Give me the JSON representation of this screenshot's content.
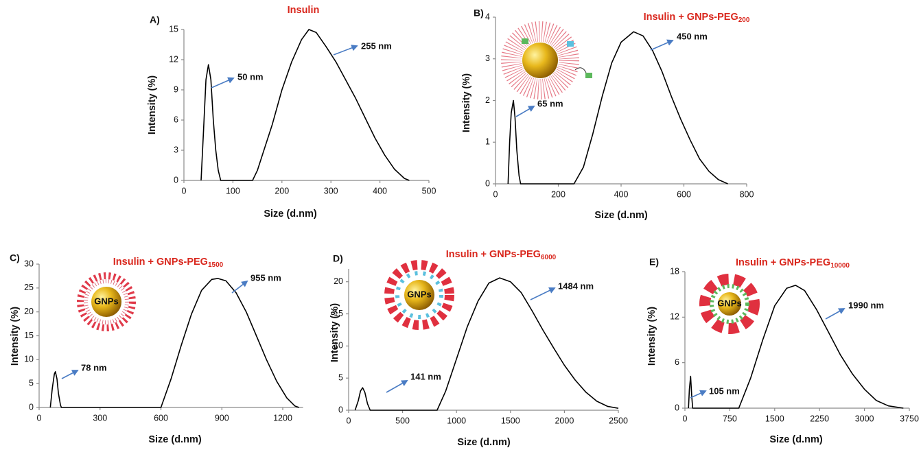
{
  "chart_data": [
    {
      "type": "line",
      "panel_label": "A)",
      "title": "Insulin",
      "x_label": "Size (d.nm)",
      "y_label": "Intensity (%)",
      "xlim": [
        0,
        500
      ],
      "xticks": [
        0,
        100,
        200,
        300,
        400,
        500
      ],
      "ylim": [
        0,
        15
      ],
      "yticks": [
        0,
        3,
        6,
        9,
        12,
        15
      ],
      "x": [
        35,
        40,
        45,
        50,
        55,
        60,
        65,
        70,
        75,
        140,
        150,
        160,
        180,
        200,
        220,
        240,
        255,
        270,
        290,
        310,
        330,
        350,
        370,
        390,
        410,
        430,
        450,
        460
      ],
      "series": [
        {
          "color": "#000000",
          "values": [
            0,
            5,
            10,
            11.5,
            10,
            6,
            3,
            1,
            0,
            0,
            1,
            2.5,
            5.5,
            9,
            11.8,
            14,
            15,
            14.7,
            13.3,
            11.8,
            10,
            8.2,
            6.2,
            4.2,
            2.5,
            1.1,
            0.2,
            0
          ]
        }
      ],
      "annotations": [
        "50 nm",
        "255 nm"
      ]
    },
    {
      "type": "line",
      "panel_label": "B)",
      "title": "Insulin + GNPs-PEG",
      "title_subscript": "200",
      "x_label": "Size (d.nm)",
      "y_label": "Intensity (%)",
      "xlim": [
        0,
        800
      ],
      "xticks": [
        0,
        200,
        400,
        600,
        800
      ],
      "ylim": [
        0,
        4
      ],
      "yticks": [
        0,
        1,
        2,
        3,
        4
      ],
      "x": [
        40,
        45,
        50,
        57,
        62,
        68,
        75,
        80,
        250,
        280,
        310,
        340,
        370,
        400,
        440,
        470,
        500,
        530,
        560,
        590,
        620,
        650,
        680,
        710,
        740
      ],
      "series": [
        {
          "color": "#000000",
          "values": [
            0,
            1,
            1.7,
            2,
            1.6,
            0.8,
            0.2,
            0,
            0,
            0.4,
            1.2,
            2.1,
            2.9,
            3.4,
            3.65,
            3.55,
            3.2,
            2.7,
            2.1,
            1.55,
            1.05,
            0.6,
            0.3,
            0.1,
            0
          ]
        }
      ],
      "annotations": [
        "65 nm",
        "450 nm"
      ]
    },
    {
      "type": "line",
      "panel_label": "C)",
      "title": "Insulin + GNPs-PEG",
      "title_subscript": "1500",
      "x_label": "Size (d.nm)",
      "y_label": "Intensity (%)",
      "illustration_label": "GNPs",
      "xlim": [
        0,
        1300
      ],
      "xticks": [
        0,
        300,
        600,
        900,
        1200
      ],
      "ylim": [
        0,
        30
      ],
      "yticks": [
        0,
        5,
        10,
        15,
        20,
        25,
        30
      ],
      "x": [
        55,
        65,
        75,
        80,
        88,
        95,
        105,
        110,
        600,
        650,
        700,
        750,
        800,
        850,
        880,
        920,
        970,
        1020,
        1070,
        1120,
        1170,
        1220,
        1260,
        1280
      ],
      "series": [
        {
          "color": "#000000",
          "values": [
            0,
            4,
            7,
            7.5,
            6,
            3,
            0.5,
            0,
            0,
            6,
            13,
            19.5,
            24.5,
            26.8,
            27,
            26.5,
            24,
            20,
            15,
            10,
            5.5,
            2,
            0.3,
            0
          ]
        }
      ],
      "annotations": [
        "78 nm",
        "955 nm"
      ]
    },
    {
      "type": "line",
      "panel_label": "D)",
      "title": "Insulin + GNPs-PEG",
      "title_subscript": "6000",
      "x_label": "Size (d.nm)",
      "y_label": "Intensity (%)",
      "illustration_label": "GNPs",
      "xlim": [
        0,
        2500
      ],
      "xticks": [
        0,
        500,
        1000,
        1500,
        2000,
        2500
      ],
      "ylim": [
        0,
        22
      ],
      "yticks": [
        0,
        5,
        10,
        15,
        20
      ],
      "x": [
        60,
        90,
        110,
        130,
        150,
        175,
        200,
        820,
        900,
        1000,
        1100,
        1200,
        1300,
        1400,
        1500,
        1600,
        1700,
        1800,
        1900,
        2000,
        2100,
        2200,
        2300,
        2400,
        2500
      ],
      "series": [
        {
          "color": "#000000",
          "values": [
            0,
            1.5,
            3,
            3.5,
            2.8,
            1,
            0,
            0,
            3,
            8,
            13,
            17,
            19.8,
            20.6,
            20,
            18.3,
            15.5,
            12.5,
            9.7,
            7,
            4.7,
            2.8,
            1.4,
            0.6,
            0.3
          ]
        }
      ],
      "annotations": [
        "141 nm",
        "1484 nm"
      ]
    },
    {
      "type": "line",
      "panel_label": "E)",
      "title": "Insulin + GNPs-PEG",
      "title_subscript": "10000",
      "x_label": "Size (d.nm)",
      "y_label": "Intensity (%)",
      "illustration_label": "GNPs",
      "xlim": [
        0,
        3750
      ],
      "xticks": [
        0,
        750,
        1500,
        2250,
        3000,
        3750
      ],
      "ylim": [
        0,
        18
      ],
      "yticks": [
        0,
        6,
        12,
        18
      ],
      "x": [
        60,
        75,
        95,
        115,
        130,
        900,
        1100,
        1300,
        1500,
        1700,
        1850,
        2000,
        2200,
        2400,
        2600,
        2800,
        3000,
        3200,
        3400,
        3650
      ],
      "series": [
        {
          "color": "#000000",
          "values": [
            0,
            2.5,
            4.2,
            1.5,
            0,
            0,
            4,
            9,
            13.5,
            15.8,
            16.2,
            15.5,
            13,
            10,
            7,
            4.5,
            2.5,
            1,
            0.3,
            0
          ]
        }
      ],
      "annotations": [
        "105 nm",
        "1990 nm"
      ]
    }
  ]
}
